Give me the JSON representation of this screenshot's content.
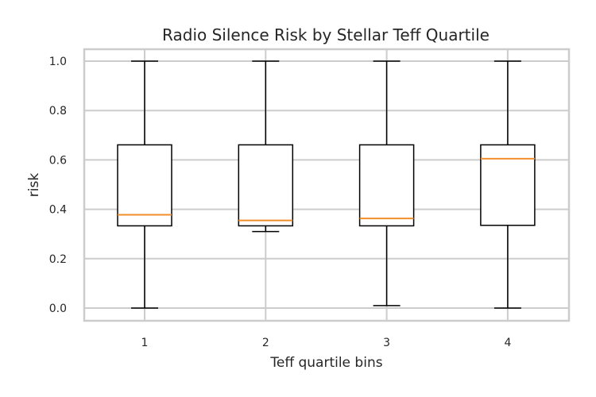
{
  "chart_data": {
    "type": "box",
    "title": "Radio Silence Risk by Stellar Teff Quartile",
    "xlabel": "Teff quartile bins",
    "ylabel": "risk",
    "ylim": [
      -0.05,
      1.05
    ],
    "yticks": [
      "0.0",
      "0.2",
      "0.4",
      "0.6",
      "0.8",
      "1.0"
    ],
    "grid": true,
    "categories": [
      "1",
      "2",
      "3",
      "4"
    ],
    "boxes": [
      {
        "whisker_low": 0.0,
        "q1": 0.333,
        "median": 0.378,
        "q3": 0.661,
        "whisker_high": 1.0
      },
      {
        "whisker_low": 0.31,
        "q1": 0.333,
        "median": 0.355,
        "q3": 0.661,
        "whisker_high": 1.0
      },
      {
        "whisker_low": 0.01,
        "q1": 0.333,
        "median": 0.363,
        "q3": 0.661,
        "whisker_high": 1.0
      },
      {
        "whisker_low": 0.0,
        "q1": 0.335,
        "median": 0.605,
        "q3": 0.661,
        "whisker_high": 1.0
      }
    ],
    "colors": {
      "box": "#000000",
      "median": "#f28e2b",
      "grid": "#cccccc",
      "spine": "#cccccc"
    }
  }
}
